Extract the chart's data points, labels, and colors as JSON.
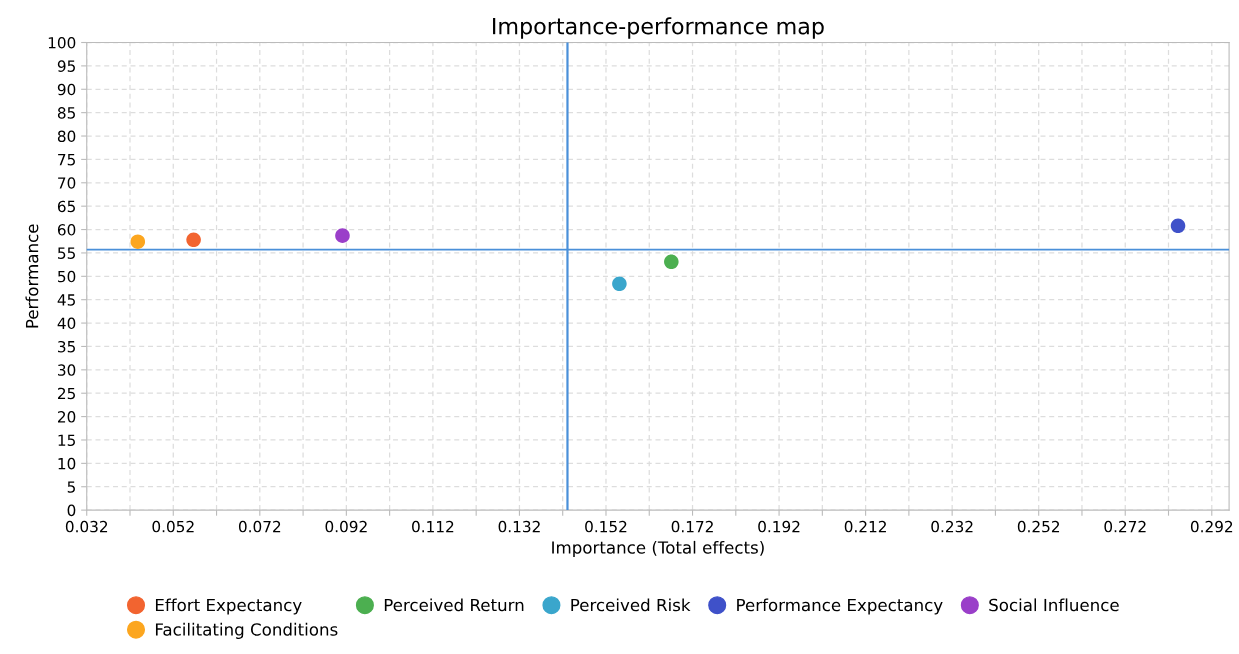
{
  "chart_data": {
    "type": "scatter",
    "title": "Importance-performance map",
    "xlabel": "Importance (Total effects)",
    "ylabel": "Performance",
    "xlim": [
      0.032,
      0.296
    ],
    "ylim": [
      0,
      100
    ],
    "xticks": [
      0.032,
      {
        "value": 0.042,
        "label": null
      },
      0.052,
      {
        "value": 0.062,
        "label": null
      },
      0.072,
      {
        "value": 0.082,
        "label": null
      },
      0.092,
      {
        "value": 0.102,
        "label": null
      },
      0.112,
      {
        "value": 0.122,
        "label": null
      },
      0.132,
      {
        "value": 0.142,
        "label": null
      },
      0.152,
      {
        "value": 0.162,
        "label": null
      },
      0.172,
      {
        "value": 0.182,
        "label": null
      },
      0.192,
      {
        "value": 0.202,
        "label": null
      },
      0.212,
      {
        "value": 0.222,
        "label": null
      },
      0.232,
      {
        "value": 0.242,
        "label": null
      },
      0.252,
      {
        "value": 0.262,
        "label": null
      },
      0.272,
      {
        "value": 0.282,
        "label": null
      },
      0.292
    ],
    "yticks": [
      0,
      5,
      10,
      15,
      20,
      25,
      30,
      35,
      40,
      45,
      50,
      55,
      60,
      65,
      70,
      75,
      80,
      85,
      90,
      95,
      100
    ],
    "grid": true,
    "legend": "bottom",
    "marker": "circle",
    "series": [
      {
        "name": "Effort Expectancy",
        "color": "#f26430",
        "x": [
          0.0567
        ],
        "values": [
          57.8
        ]
      },
      {
        "name": "Facilitating Conditions",
        "color": "#fca61f",
        "x": [
          0.0438
        ],
        "values": [
          57.4
        ]
      },
      {
        "name": "Perceived Return",
        "color": "#4caf50",
        "x": [
          0.1671
        ],
        "values": [
          53.1
        ]
      },
      {
        "name": "Perceived Risk",
        "color": "#3aa6cc",
        "x": [
          0.1551
        ],
        "values": [
          48.4
        ]
      },
      {
        "name": "Performance Expectancy",
        "color": "#3f51c9",
        "x": [
          0.2842
        ],
        "values": [
          60.8
        ]
      },
      {
        "name": "Social Influence",
        "color": "#9a3fc9",
        "x": [
          0.0911
        ],
        "values": [
          58.7
        ]
      }
    ],
    "ref_lines": [
      {
        "axis": "x",
        "value": 0.1431,
        "color": "#4a90d9"
      },
      {
        "axis": "y",
        "value": 55.7,
        "color": "#4a90d9"
      }
    ]
  }
}
